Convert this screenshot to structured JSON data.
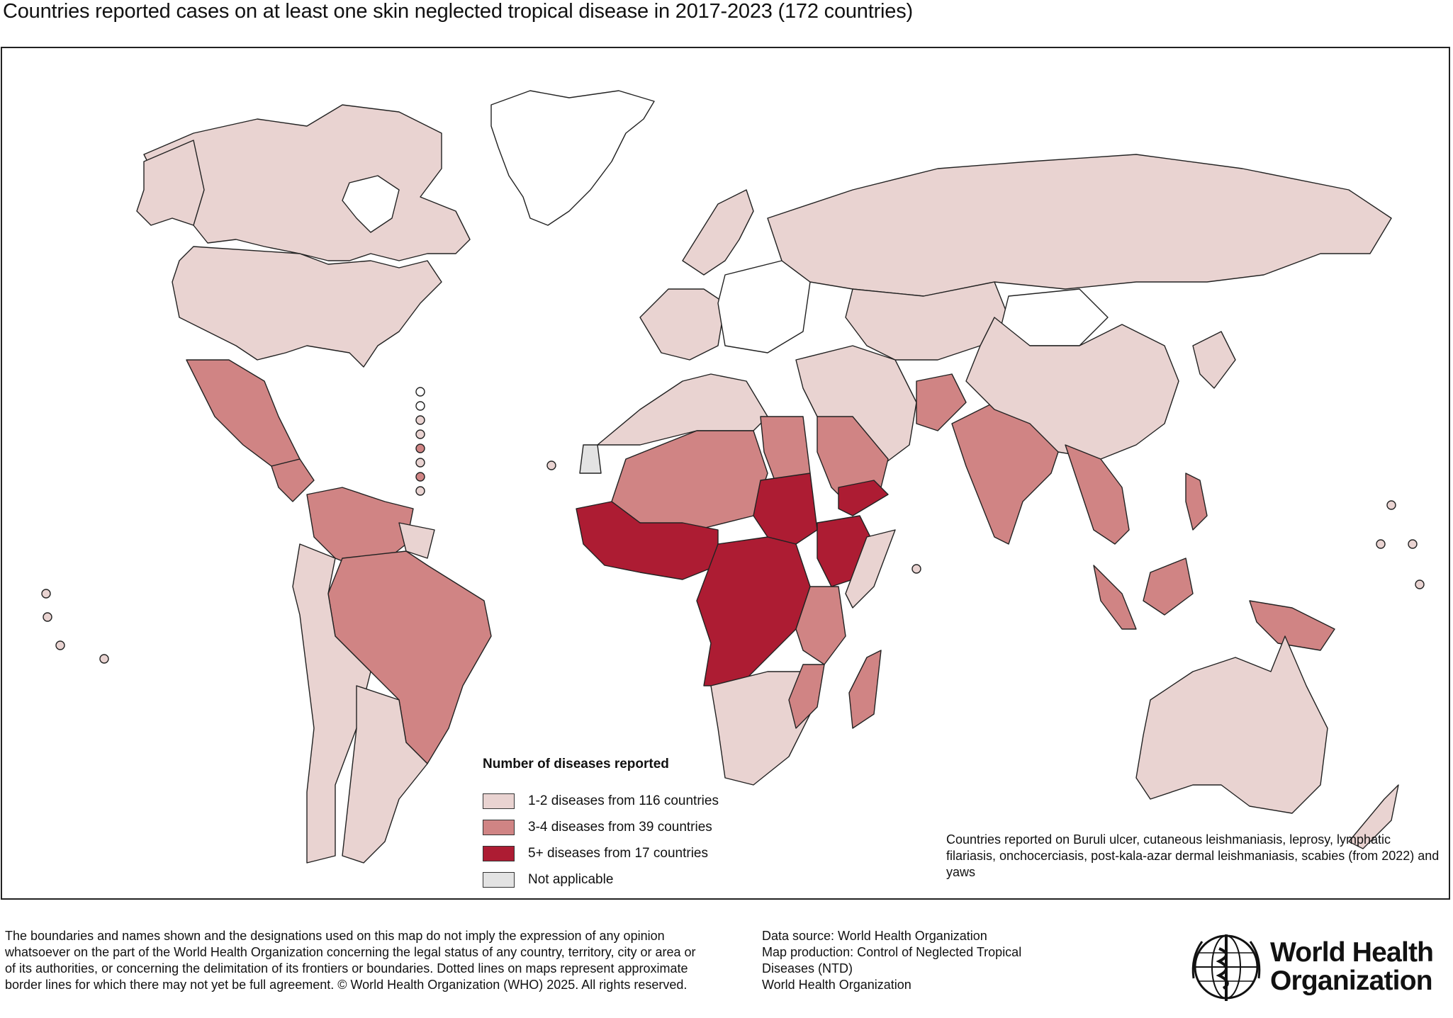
{
  "title": "Countries reported cases on at least one skin neglected tropical disease in 2017-2023 (172 countries)",
  "colors": {
    "band_1_2": "#e9d3d1",
    "band_3_4": "#d08484",
    "band_5_plus": "#ad1c33",
    "not_applicable": "#e3e3e3",
    "no_data": "#ffffff",
    "border": "#222222"
  },
  "legend": {
    "title": "Number of diseases reported",
    "items": [
      {
        "label": "1-2 diseases from 116 countries",
        "color_key": "band_1_2"
      },
      {
        "label": "3-4 diseases from 39 countries",
        "color_key": "band_3_4"
      },
      {
        "label": "5+ diseases from 17 countries",
        "color_key": "band_5_plus"
      },
      {
        "label": "Not applicable",
        "color_key": "not_applicable"
      }
    ]
  },
  "note": "Countries reported on Buruli ulcer, cutaneous leishmaniasis, leprosy, lymphatic filariasis, onchocerciasis, post-kala-azar dermal leishmaniasis, scabies (from 2022) and yaws",
  "disclaimer": "The boundaries and names shown and the designations used on this map do not imply the expression of any opinion whatsoever on the part of the World Health Organization concerning the legal status of any country, territory, city or area or of its authorities, or concerning the delimitation of its frontiers or boundaries. Dotted lines on maps represent approximate border lines for which there may not yet be full agreement. © World Health Organization (WHO) 2025. All rights reserved.",
  "source": {
    "line1": "Data source: World Health Organization",
    "line2": "Map production: Control of Neglected Tropical Diseases (NTD)",
    "line3": "World Health Organization"
  },
  "logo": {
    "line1": "World Health",
    "line2": "Organization",
    "icon": "who-emblem-icon"
  }
}
